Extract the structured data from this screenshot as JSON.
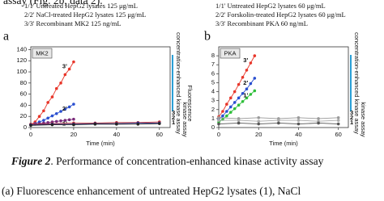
{
  "top_text": "assay (Fig. 2b, data 2).",
  "caption": {
    "label": "Figure 2",
    "text": ". Performance of concentration-enhanced kinase activity assay",
    "line2": "(a) Fluorescence enhancement of untreated HepG2 lysates (1), NaCl"
  },
  "chart_data": [
    {
      "type": "scatter",
      "panel": "a",
      "badge": "MK2",
      "legend": [
        "1/1'  Untreated HepG2 lysates 125 μg/mL",
        "2/2'  NaCl-treated HepG2 lysates 125 μg/mL",
        "3/3'  Recombinant MK2 125 ng/mL"
      ],
      "x_label": "Time (min)",
      "y_label": "Fluorescence",
      "annotations": [
        "concentration-enhanced kinase assay",
        "kinase assay"
      ],
      "xlim": [
        0,
        65
      ],
      "xticks": [
        0,
        20,
        40,
        60
      ],
      "ylim": [
        0,
        145
      ],
      "yticks": [
        0,
        20,
        40,
        60,
        80,
        100,
        120,
        140
      ],
      "series": [
        {
          "name": "3'",
          "color": "#e8362a",
          "x": [
            0,
            2,
            4,
            6,
            8,
            10,
            12,
            14,
            16,
            18,
            20
          ],
          "values": [
            5,
            10,
            20,
            30,
            45,
            55,
            70,
            80,
            95,
            105,
            118
          ]
        },
        {
          "name": "2'",
          "color": "#2a4fd0",
          "x": [
            0,
            2,
            4,
            6,
            8,
            10,
            12,
            14,
            16,
            18,
            20
          ],
          "values": [
            5,
            7,
            10,
            13,
            17,
            21,
            25,
            29,
            33,
            37,
            42
          ]
        },
        {
          "name": "1'",
          "color": "#7a2a7a",
          "x": [
            0,
            2,
            4,
            6,
            8,
            10,
            12,
            14,
            16,
            18,
            20
          ],
          "values": [
            5,
            6,
            7,
            8,
            9,
            10,
            11,
            12,
            13,
            14,
            15
          ]
        },
        {
          "name": "3",
          "color": "#c03030",
          "x": [
            0,
            10,
            20,
            30,
            40,
            50,
            60
          ],
          "values": [
            6,
            7,
            8,
            8,
            9,
            9,
            10
          ]
        },
        {
          "name": "2",
          "color": "#303090",
          "x": [
            0,
            10,
            20,
            30,
            40,
            50,
            60
          ],
          "values": [
            5,
            6,
            6,
            7,
            7,
            8,
            8
          ]
        },
        {
          "name": "1",
          "color": "#222222",
          "x": [
            0,
            10,
            20,
            30,
            40,
            50,
            60
          ],
          "values": [
            4,
            5,
            5,
            6,
            6,
            6,
            7
          ]
        }
      ]
    },
    {
      "type": "scatter",
      "panel": "b",
      "badge": "PKA",
      "legend": [
        "1/1'  Untreated HepG2 lysates 60 μg/mL",
        "2/2'  Forskolin-treated HepG2 lysates 60 μg/mL",
        "3/3'  Recombinant PKA 60 ng/mL"
      ],
      "x_label": "Time (min)",
      "annotations": [
        "concentration-enhanced kinase assay",
        "kinase assay"
      ],
      "xlim": [
        0,
        65
      ],
      "xticks": [
        0,
        20,
        40,
        60
      ],
      "ylim": [
        0,
        9
      ],
      "yticks": [
        0,
        1,
        2,
        3,
        4,
        5,
        6,
        7,
        8
      ],
      "series": [
        {
          "name": "3'",
          "color": "#e8362a",
          "x": [
            0,
            2,
            4,
            6,
            8,
            10,
            12,
            14,
            16,
            18
          ],
          "values": [
            1.2,
            1.8,
            2.6,
            3.3,
            4,
            4.8,
            5.6,
            6.4,
            7.2,
            8
          ]
        },
        {
          "name": "2'",
          "color": "#2a4fd0",
          "x": [
            0,
            2,
            4,
            6,
            8,
            10,
            12,
            14,
            16,
            18
          ],
          "values": [
            0.9,
            1.3,
            1.8,
            2.3,
            2.8,
            3.3,
            3.8,
            4.3,
            4.9,
            5.5
          ]
        },
        {
          "name": "1'",
          "color": "#2fbf3a",
          "x": [
            0,
            2,
            4,
            6,
            8,
            10,
            12,
            14,
            16,
            18
          ],
          "values": [
            0.6,
            0.9,
            1.3,
            1.7,
            2.1,
            2.5,
            2.9,
            3.3,
            3.7,
            4.1
          ]
        },
        {
          "name": "3",
          "color": "#999999",
          "x": [
            0,
            10,
            20,
            30,
            40,
            50,
            60
          ],
          "values": [
            1.1,
            1,
            1.1,
            1,
            1.1,
            1,
            1.1
          ]
        },
        {
          "name": "2",
          "color": "#aaaaaa",
          "x": [
            0,
            10,
            20,
            30,
            40,
            50,
            60
          ],
          "values": [
            0.8,
            0.8,
            0.7,
            0.8,
            0.8,
            0.7,
            0.8
          ]
        },
        {
          "name": "1",
          "color": "#555555",
          "x": [
            0,
            10,
            20,
            30,
            40,
            50,
            60
          ],
          "values": [
            0.4,
            0.5,
            0.4,
            0.5,
            0.4,
            0.5,
            0.4
          ]
        }
      ]
    }
  ]
}
